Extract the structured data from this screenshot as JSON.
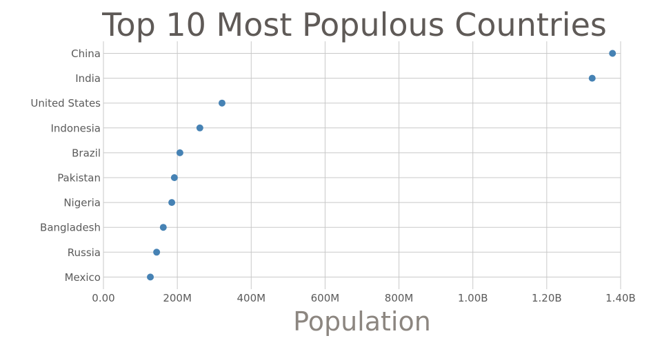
{
  "chart_data": {
    "type": "scatter",
    "title": "Top 10 Most Populous Countries",
    "xlabel": "Population",
    "ylabel": "",
    "xlim": [
      0,
      1400000000
    ],
    "grid": true,
    "x_ticks": [
      0,
      200000000,
      400000000,
      600000000,
      800000000,
      1000000000,
      1200000000,
      1400000000
    ],
    "x_tick_labels": [
      "0.00",
      "200M",
      "400M",
      "600M",
      "800M",
      "1.00B",
      "1.20B",
      "1.40B"
    ],
    "categories": [
      "China",
      "India",
      "United States",
      "Indonesia",
      "Brazil",
      "Pakistan",
      "Nigeria",
      "Bangladesh",
      "Russia",
      "Mexico"
    ],
    "values": [
      1378000000,
      1323000000,
      321000000,
      261000000,
      207000000,
      192000000,
      185000000,
      162000000,
      144000000,
      127000000
    ],
    "colors": {
      "point": "#4682b4",
      "grid": "#c8c8c8",
      "text": "#5a5a5a",
      "xlabel": "#8c8680"
    }
  }
}
